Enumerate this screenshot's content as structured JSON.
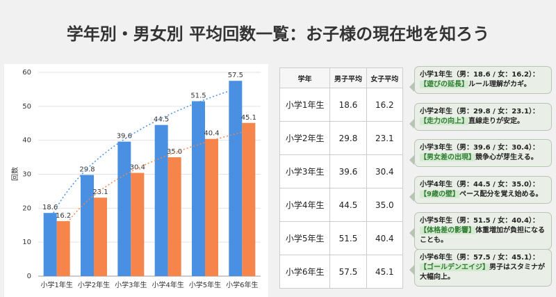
{
  "title": "学年別・男女別 平均回数一覧：お子様の現在地を知ろう",
  "chart_data": {
    "type": "bar",
    "y_label": "回数",
    "categories": [
      "小学1年生",
      "小学2年生",
      "小学3年生",
      "小学4年生",
      "小学5年生",
      "小学6年生"
    ],
    "series": [
      {
        "color": "#4a90e2",
        "values": [
          18.6,
          29.8,
          39.6,
          44.5,
          51.5,
          57.5
        ]
      },
      {
        "color": "#f5854a",
        "values": [
          16.2,
          23.1,
          30.4,
          35,
          40.4,
          45.1
        ],
        "value_labels": [
          "16.2",
          "23.1",
          "30.4",
          "35.0",
          "40.4",
          "45.1"
        ]
      }
    ],
    "ylim": [
      0,
      60
    ],
    "yticks": [
      0,
      10,
      20,
      30,
      40,
      50,
      60
    ],
    "grid": true,
    "trendline": "log"
  },
  "table": {
    "header": [
      "学年",
      "男子平均",
      "女子平均"
    ],
    "rows": [
      [
        "小学1年生",
        "18.6",
        "16.2"
      ],
      [
        "小学2年生",
        "29.8",
        "23.1"
      ],
      [
        "小学3年生",
        "39.6",
        "30.4"
      ],
      [
        "小学4年生",
        "44.5",
        "35.0"
      ],
      [
        "小学5年生",
        "51.5",
        "40.4"
      ],
      [
        "小学6年生",
        "57.5",
        "45.1"
      ]
    ]
  },
  "notes": [
    {
      "heading": "小学1年生（男：18.6 / 女：16.2）：",
      "tag": "【遊びの延長】",
      "text": "ルール理解がカギ。"
    },
    {
      "heading": "小学2年生（男：29.8 / 女：23.1）：",
      "tag": "【走力の向上】",
      "text": "直線走りが安定。"
    },
    {
      "heading": "小学3年生（男：39.6 / 女：30.4）：",
      "tag": "【男女差の出現】",
      "text": "競争心が芽生える。"
    },
    {
      "heading": "小学4年生（男：44.5 / 女：35.0）：",
      "tag": "【9歳の壁】",
      "text": "ペース配分を覚え始める。"
    },
    {
      "heading": "小学5年生（男：51.5 / 女：40.4）：",
      "tag": "【体格差の影響】",
      "text": "体重増加が負担になることも。"
    },
    {
      "heading": "小学6年生（男：57.5 / 女：45.1）：",
      "tag": "【ゴールデンエイジ】",
      "text": "男子はスタミナが大幅向上。"
    }
  ]
}
